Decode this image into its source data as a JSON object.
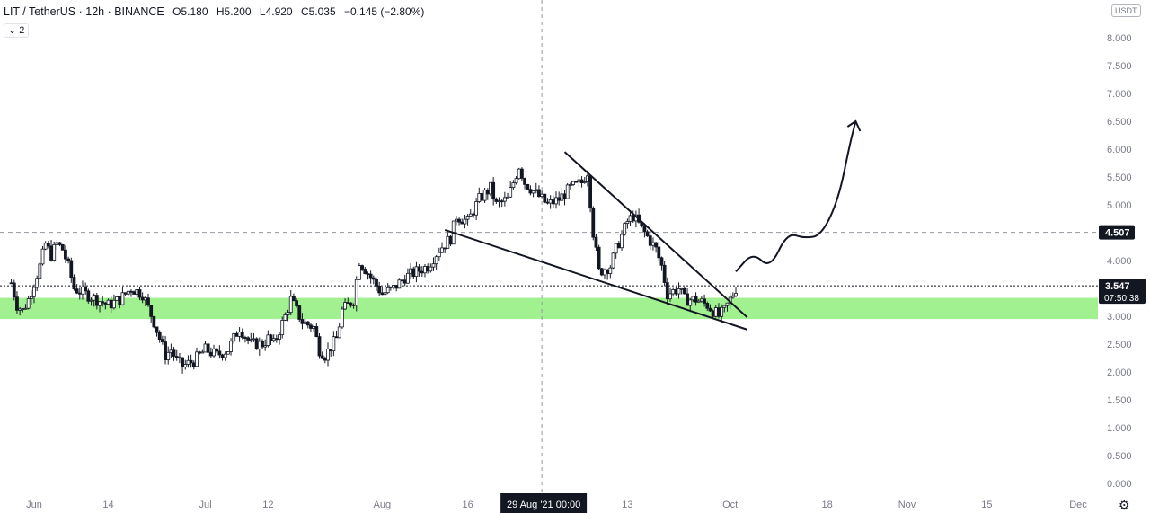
{
  "header": {
    "symbol": "LIT / TetherUS · 12h · BINANCE",
    "open_label": "O",
    "open": "5.180",
    "high_label": "H",
    "high": "5.200",
    "low_label": "L",
    "low": "4.920",
    "close_label": "C",
    "close": "5.035",
    "change": "−0.145 (−2.80%)",
    "indicator_badge": "⌄ 2",
    "currency_badge": "USDT"
  },
  "colors": {
    "up": "#26a69a",
    "down": "#131722",
    "zone": "#90ee7e",
    "line": "#131722",
    "grid_dash": "#9598a1"
  },
  "chart_data": {
    "type": "candlestick",
    "symbol": "LIT/USDT",
    "interval": "12h",
    "exchange": "BINANCE",
    "ylim": [
      0.0,
      8.3
    ],
    "y_ticks": [
      "0.000",
      "0.500",
      "1.000",
      "1.500",
      "2.000",
      "2.500",
      "3.000",
      "3.500",
      "4.000",
      "4.500",
      "5.000",
      "5.500",
      "6.000",
      "6.500",
      "7.000",
      "7.500",
      "8.000"
    ],
    "x_ticks": [
      "Jun",
      "14",
      "Jul",
      "12",
      "Aug",
      "16",
      "13",
      "Oct",
      "18",
      "Nov",
      "15",
      "Dec"
    ],
    "x_tick_dates": [
      "2021-06-01",
      "2021-06-14",
      "2021-07-01",
      "2021-07-12",
      "2021-08-01",
      "2021-08-16",
      "2021-09-13",
      "2021-10-01",
      "2021-10-18",
      "2021-11-01",
      "2021-11-15",
      "2021-12-01"
    ],
    "x_range_dates": [
      "2021-05-28",
      "2021-12-04"
    ],
    "crosshair_date_label": "29 Aug '21  00:00",
    "crosshair_date": "2021-08-29",
    "price_level_line": 4.507,
    "current_price_line": 3.547,
    "price_labels": [
      {
        "value": "4.507"
      },
      {
        "value": "3.547",
        "sub": "07:50:38"
      }
    ],
    "support_zone": [
      2.95,
      3.33
    ],
    "close_path": [
      [
        "2021-05-28",
        3.6
      ],
      [
        "2021-05-29",
        3.2
      ],
      [
        "2021-05-30",
        3.1
      ],
      [
        "2021-05-31",
        3.3
      ],
      [
        "2021-06-02",
        3.9
      ],
      [
        "2021-06-03",
        4.3
      ],
      [
        "2021-06-04",
        4.1
      ],
      [
        "2021-06-05",
        4.3
      ],
      [
        "2021-06-06",
        4.2
      ],
      [
        "2021-06-07",
        3.9
      ],
      [
        "2021-06-08",
        3.5
      ],
      [
        "2021-06-10",
        3.4
      ],
      [
        "2021-06-12",
        3.3
      ],
      [
        "2021-06-14",
        3.2
      ],
      [
        "2021-06-16",
        3.3
      ],
      [
        "2021-06-18",
        3.5
      ],
      [
        "2021-06-20",
        3.4
      ],
      [
        "2021-06-22",
        2.9
      ],
      [
        "2021-06-23",
        2.6
      ],
      [
        "2021-06-24",
        2.3
      ],
      [
        "2021-06-25",
        2.4
      ],
      [
        "2021-06-26",
        2.2
      ],
      [
        "2021-06-27",
        2.1
      ],
      [
        "2021-06-29",
        2.2
      ],
      [
        "2021-07-01",
        2.4
      ],
      [
        "2021-07-03",
        2.3
      ],
      [
        "2021-07-05",
        2.4
      ],
      [
        "2021-07-07",
        2.8
      ],
      [
        "2021-07-09",
        2.5
      ],
      [
        "2021-07-11",
        2.5
      ],
      [
        "2021-07-12",
        2.6
      ],
      [
        "2021-07-13",
        2.5
      ],
      [
        "2021-07-15",
        3.0
      ],
      [
        "2021-07-16",
        3.3
      ],
      [
        "2021-07-18",
        2.9
      ],
      [
        "2021-07-20",
        2.8
      ],
      [
        "2021-07-21",
        2.4
      ],
      [
        "2021-07-22",
        2.3
      ],
      [
        "2021-07-24",
        2.6
      ],
      [
        "2021-07-25",
        3.1
      ],
      [
        "2021-07-27",
        3.3
      ],
      [
        "2021-07-28",
        4.0
      ],
      [
        "2021-07-30",
        3.7
      ],
      [
        "2021-08-01",
        3.4
      ],
      [
        "2021-08-03",
        3.5
      ],
      [
        "2021-08-05",
        3.7
      ],
      [
        "2021-08-07",
        3.8
      ],
      [
        "2021-08-09",
        3.9
      ],
      [
        "2021-08-11",
        4.2
      ],
      [
        "2021-08-13",
        4.4
      ],
      [
        "2021-08-14",
        4.8
      ],
      [
        "2021-08-16",
        4.7
      ],
      [
        "2021-08-18",
        5.1
      ],
      [
        "2021-08-20",
        5.3
      ],
      [
        "2021-08-21",
        5.0
      ],
      [
        "2021-08-23",
        5.1
      ],
      [
        "2021-08-25",
        5.7
      ],
      [
        "2021-08-26",
        5.4
      ],
      [
        "2021-08-28",
        5.2
      ],
      [
        "2021-08-30",
        5.0
      ],
      [
        "2021-09-01",
        5.1
      ],
      [
        "2021-09-03",
        5.3
      ],
      [
        "2021-09-05",
        5.4
      ],
      [
        "2021-09-06",
        5.6
      ],
      [
        "2021-09-07",
        4.5
      ],
      [
        "2021-09-08",
        3.8
      ],
      [
        "2021-09-10",
        3.9
      ],
      [
        "2021-09-11",
        4.2
      ],
      [
        "2021-09-13",
        4.7
      ],
      [
        "2021-09-14",
        4.8
      ],
      [
        "2021-09-16",
        4.5
      ],
      [
        "2021-09-18",
        4.2
      ],
      [
        "2021-09-19",
        3.9
      ],
      [
        "2021-09-20",
        3.4
      ],
      [
        "2021-09-22",
        3.5
      ],
      [
        "2021-09-23",
        3.3
      ],
      [
        "2021-09-25",
        3.3
      ],
      [
        "2021-09-27",
        3.2
      ],
      [
        "2021-09-28",
        3.1
      ],
      [
        "2021-09-29",
        3.0
      ],
      [
        "2021-09-30",
        3.1
      ],
      [
        "2021-10-01",
        3.3
      ],
      [
        "2021-10-02",
        3.5
      ]
    ],
    "trendlines": [
      {
        "name": "upper",
        "from": [
          "2021-09-02",
          5.95
        ],
        "to": [
          "2021-10-04",
          2.98
        ]
      },
      {
        "name": "lower",
        "from": [
          "2021-08-12",
          4.55
        ],
        "to": [
          "2021-10-04",
          2.76
        ]
      }
    ],
    "projection_path": [
      [
        "2021-10-02",
        3.8
      ],
      [
        "2021-10-05",
        4.15
      ],
      [
        "2021-10-08",
        3.85
      ],
      [
        "2021-10-11",
        4.5
      ],
      [
        "2021-10-14",
        4.4
      ],
      [
        "2021-10-17",
        4.45
      ],
      [
        "2021-10-20",
        5.1
      ],
      [
        "2021-10-22",
        6.1
      ],
      [
        "2021-10-23",
        6.5
      ]
    ]
  }
}
